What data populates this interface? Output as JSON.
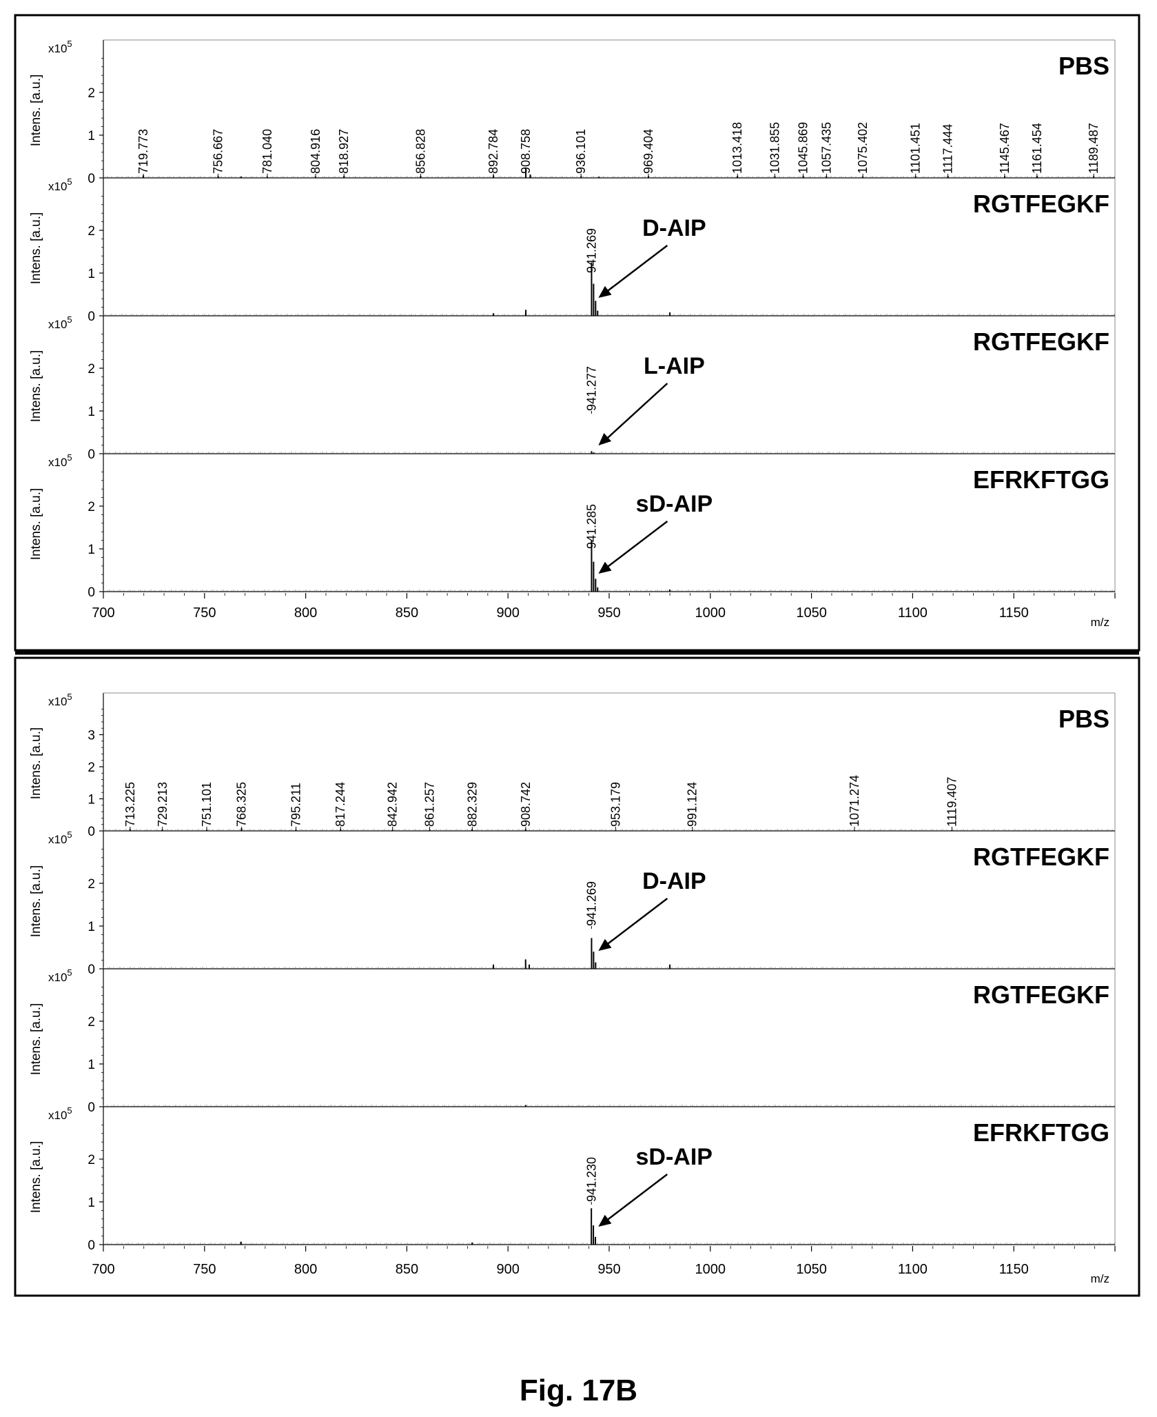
{
  "figure": {
    "caption": "Fig. 17B"
  },
  "colors": {
    "trace": "#000000",
    "axis": "#000000",
    "frame": "#000000"
  },
  "chart_data": [
    {
      "type": "stacked-spectra",
      "x_axis": {
        "range": [
          700,
          1200
        ],
        "ticks": [
          700,
          750,
          800,
          850,
          900,
          950,
          1000,
          1050,
          1100,
          1150
        ],
        "label": "m/z"
      },
      "panels": [
        {
          "sample": "PBS",
          "ylabel": "Intens. [a.u.]",
          "yexp": "x10",
          "yexp_power": "5",
          "yticks": [
            "0",
            "1",
            "2"
          ],
          "ylim": [
            0,
            3
          ],
          "peak_labels": [
            "719.773",
            "756.667",
            "781.040",
            "804.916",
            "818.927",
            "856.828",
            "892.784",
            "908.758",
            "936.101",
            "969.404",
            "1013.418",
            "1031.855",
            "1045.869",
            "1057.435",
            "1075.402",
            "1101.451",
            "1117.444",
            "1145.467",
            "1161.454",
            "1189.487"
          ],
          "peaks": [
            [
              719.8,
              0.06
            ],
            [
              756.7,
              0.04
            ],
            [
              768.0,
              0.03
            ],
            [
              781.0,
              0.03
            ],
            [
              804.9,
              0.03
            ],
            [
              818.9,
              0.04
            ],
            [
              856.8,
              0.04
            ],
            [
              892.8,
              0.06
            ],
            [
              908.8,
              0.22
            ],
            [
              911.0,
              0.08
            ],
            [
              936.1,
              0.04
            ],
            [
              945.0,
              0.03
            ],
            [
              969.4,
              0.04
            ],
            [
              1013.4,
              0.04
            ],
            [
              1031.9,
              0.04
            ],
            [
              1045.9,
              0.04
            ],
            [
              1057.4,
              0.04
            ],
            [
              1075.4,
              0.03
            ],
            [
              1101.5,
              0.04
            ],
            [
              1117.4,
              0.04
            ],
            [
              1145.5,
              0.04
            ],
            [
              1161.5,
              0.04
            ],
            [
              1189.5,
              0.04
            ]
          ],
          "annotation": ""
        },
        {
          "sample": "RGTFEGKF",
          "ylabel": "Intens. [a.u.]",
          "yexp": "x10",
          "yexp_power": "5",
          "yticks": [
            "0",
            "1",
            "2"
          ],
          "ylim": [
            0,
            3
          ],
          "peak_labels": [
            "941.269"
          ],
          "peaks": [
            [
              892.8,
              0.06
            ],
            [
              908.8,
              0.14
            ],
            [
              941.3,
              1.25
            ],
            [
              942.3,
              0.75
            ],
            [
              943.3,
              0.35
            ],
            [
              944.3,
              0.12
            ],
            [
              980.0,
              0.08
            ]
          ],
          "annotation": "D-AIP"
        },
        {
          "sample": "RGTFEGKF",
          "ylabel": "Intens. [a.u.]",
          "yexp": "x10",
          "yexp_power": "5",
          "yticks": [
            "0",
            "1",
            "2"
          ],
          "ylim": [
            0,
            3
          ],
          "peak_labels": [
            "941.277"
          ],
          "peaks": [
            [
              941.3,
              0.06
            ],
            [
              942.3,
              0.03
            ]
          ],
          "annotation": "L-AIP"
        },
        {
          "sample": "EFRKFTGG",
          "ylabel": "Intens. [a.u.]",
          "yexp": "x10",
          "yexp_power": "5",
          "yticks": [
            "0",
            "1",
            "2"
          ],
          "ylim": [
            0,
            3
          ],
          "peak_labels": [
            "941.285"
          ],
          "peaks": [
            [
              941.3,
              1.2
            ],
            [
              942.3,
              0.7
            ],
            [
              943.3,
              0.3
            ],
            [
              944.3,
              0.1
            ],
            [
              980.0,
              0.05
            ]
          ],
          "annotation": "sD-AIP"
        }
      ]
    },
    {
      "type": "stacked-spectra",
      "x_axis": {
        "range": [
          700,
          1200
        ],
        "ticks": [
          700,
          750,
          800,
          850,
          900,
          950,
          1000,
          1050,
          1100,
          1150
        ],
        "label": "m/z"
      },
      "panels": [
        {
          "sample": "PBS",
          "ylabel": "Intens. [a.u.]",
          "yexp": "x10",
          "yexp_power": "5",
          "yticks": [
            "0",
            "1",
            "2",
            "3"
          ],
          "ylim": [
            0,
            4
          ],
          "peak_labels": [
            "713.225",
            "729.213",
            "751.101",
            "768.325",
            "795.211",
            "817.244",
            "842.942",
            "861.257",
            "882.329",
            "908.742",
            "953.179",
            "991.124",
            "1071.274",
            "1119.407"
          ],
          "peaks": [
            [
              713.2,
              0.06
            ],
            [
              729.2,
              0.04
            ],
            [
              751.1,
              0.04
            ],
            [
              768.3,
              0.08
            ],
            [
              795.2,
              0.04
            ],
            [
              817.2,
              0.05
            ],
            [
              842.9,
              0.04
            ],
            [
              861.3,
              0.04
            ],
            [
              882.3,
              0.05
            ],
            [
              908.7,
              0.06
            ],
            [
              953.2,
              0.03
            ],
            [
              991.1,
              0.03
            ],
            [
              1071.3,
              0.03
            ],
            [
              1119.4,
              0.03
            ]
          ],
          "annotation": ""
        },
        {
          "sample": "RGTFEGKF",
          "ylabel": "Intens. [a.u.]",
          "yexp": "x10",
          "yexp_power": "5",
          "yticks": [
            "0",
            "1",
            "2"
          ],
          "ylim": [
            0,
            3
          ],
          "peak_labels": [
            "941.269"
          ],
          "peaks": [
            [
              892.8,
              0.1
            ],
            [
              908.7,
              0.22
            ],
            [
              910.5,
              0.1
            ],
            [
              941.3,
              0.72
            ],
            [
              942.3,
              0.4
            ],
            [
              943.3,
              0.15
            ],
            [
              980.0,
              0.1
            ]
          ],
          "annotation": "D-AIP"
        },
        {
          "sample": "RGTFEGKF",
          "ylabel": "Intens. [a.u.]",
          "yexp": "x10",
          "yexp_power": "5",
          "yticks": [
            "0",
            "1",
            "2"
          ],
          "ylim": [
            0,
            3
          ],
          "peak_labels": [],
          "peaks": [
            [
              908.7,
              0.04
            ]
          ],
          "annotation": ""
        },
        {
          "sample": "EFRKFTGG",
          "ylabel": "Intens. [a.u.]",
          "yexp": "x10",
          "yexp_power": "5",
          "yticks": [
            "0",
            "1",
            "2"
          ],
          "ylim": [
            0,
            3
          ],
          "peak_labels": [
            "941.230"
          ],
          "peaks": [
            [
              768.0,
              0.07
            ],
            [
              882.3,
              0.05
            ],
            [
              941.2,
              0.85
            ],
            [
              942.2,
              0.45
            ],
            [
              943.2,
              0.18
            ]
          ],
          "annotation": "sD-AIP"
        }
      ]
    }
  ]
}
